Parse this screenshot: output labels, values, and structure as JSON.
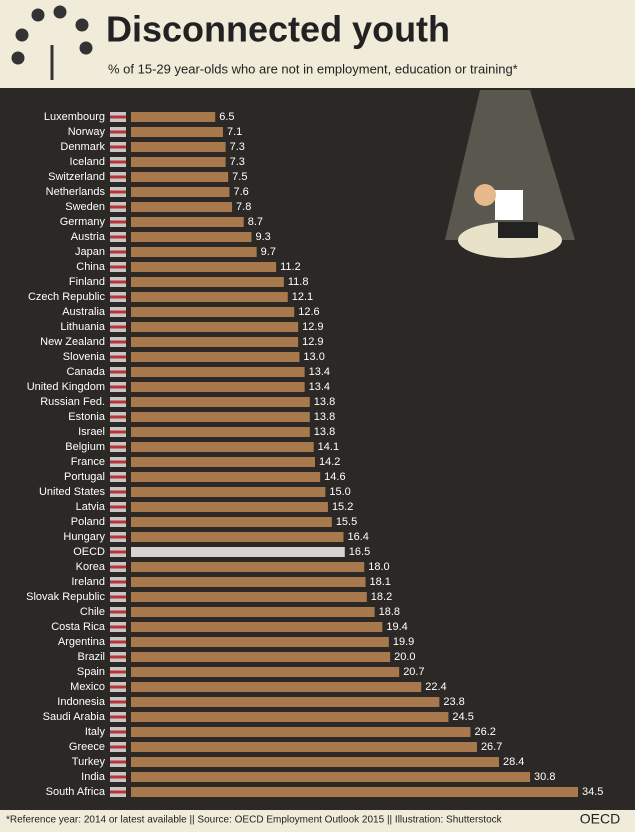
{
  "chart_data": {
    "type": "bar",
    "orientation": "horizontal",
    "title": "Disconnected youth",
    "subtitle": "% of 15-29 year-olds who are not in employment, education or training*",
    "footnote": "*Reference year: 2014 or latest available || Source: OECD Employment Outlook 2015 || Illustration: Shutterstock",
    "logo": "OECD",
    "categories": [
      "Luxembourg",
      "Norway",
      "Denmark",
      "Iceland",
      "Switzerland",
      "Netherlands",
      "Sweden",
      "Germany",
      "Austria",
      "Japan",
      "China",
      "Finland",
      "Czech Republic",
      "Australia",
      "Lithuania",
      "New Zealand",
      "Slovenia",
      "Canada",
      "United Kingdom",
      "Russian Fed.",
      "Estonia",
      "Israel",
      "Belgium",
      "France",
      "Portugal",
      "United States",
      "Latvia",
      "Poland",
      "Hungary",
      "OECD",
      "Korea",
      "Ireland",
      "Slovak Republic",
      "Chile",
      "Costa Rica",
      "Argentina",
      "Brazil",
      "Spain",
      "Mexico",
      "Indonesia",
      "Saudi Arabia",
      "Italy",
      "Greece",
      "Turkey",
      "India",
      "South Africa"
    ],
    "values": [
      6.5,
      7.1,
      7.3,
      7.3,
      7.5,
      7.6,
      7.8,
      8.7,
      9.3,
      9.7,
      11.2,
      11.8,
      12.1,
      12.6,
      12.9,
      12.9,
      13.0,
      13.4,
      13.4,
      13.8,
      13.8,
      13.8,
      14.1,
      14.2,
      14.6,
      15.0,
      15.2,
      15.5,
      16.4,
      16.5,
      18.0,
      18.1,
      18.2,
      18.8,
      19.4,
      19.9,
      20.0,
      20.7,
      22.4,
      23.8,
      24.5,
      26.2,
      26.7,
      28.4,
      30.8,
      34.5
    ],
    "value_labels": [
      "6.5",
      "7.1",
      "7.3",
      "7.3",
      "7.5",
      "7.6",
      "7.8",
      "8.7",
      "9.3",
      "9.7",
      "11.2",
      "11.8",
      "12.1",
      "12.6",
      "12.9",
      "12.9",
      "13.0",
      "13.4",
      "13.4",
      "13.8",
      "13.8",
      "13.8",
      "14.1",
      "14.2",
      "14.6",
      "15.0",
      "15.2",
      "15.5",
      "16.4",
      "16.5",
      "18.0",
      "18.1",
      "18.2",
      "18.8",
      "19.4",
      "19.9",
      "20.0",
      "20.7",
      "22.4",
      "23.8",
      "24.5",
      "26.2",
      "26.7",
      "28.4",
      "30.8",
      "34.5"
    ],
    "colors": [
      "#a8794d",
      "#a8794d",
      "#a8794d",
      "#a8794d",
      "#a8794d",
      "#a8794d",
      "#a8794d",
      "#a8794d",
      "#a8794d",
      "#a8794d",
      "#a8794d",
      "#a8794d",
      "#a8794d",
      "#a8794d",
      "#a8794d",
      "#a8794d",
      "#a8794d",
      "#a8794d",
      "#a8794d",
      "#a8794d",
      "#a8794d",
      "#a8794d",
      "#a8794d",
      "#a8794d",
      "#a8794d",
      "#a8794d",
      "#a8794d",
      "#a8794d",
      "#a8794d",
      "#d4d4d4",
      "#a8794d",
      "#a8794d",
      "#a8794d",
      "#a8794d",
      "#a8794d",
      "#a8794d",
      "#a8794d",
      "#a8794d",
      "#a8794d",
      "#a8794d",
      "#a8794d",
      "#a8794d",
      "#a8794d",
      "#a8794d",
      "#a8794d",
      "#a8794d"
    ]
  }
}
